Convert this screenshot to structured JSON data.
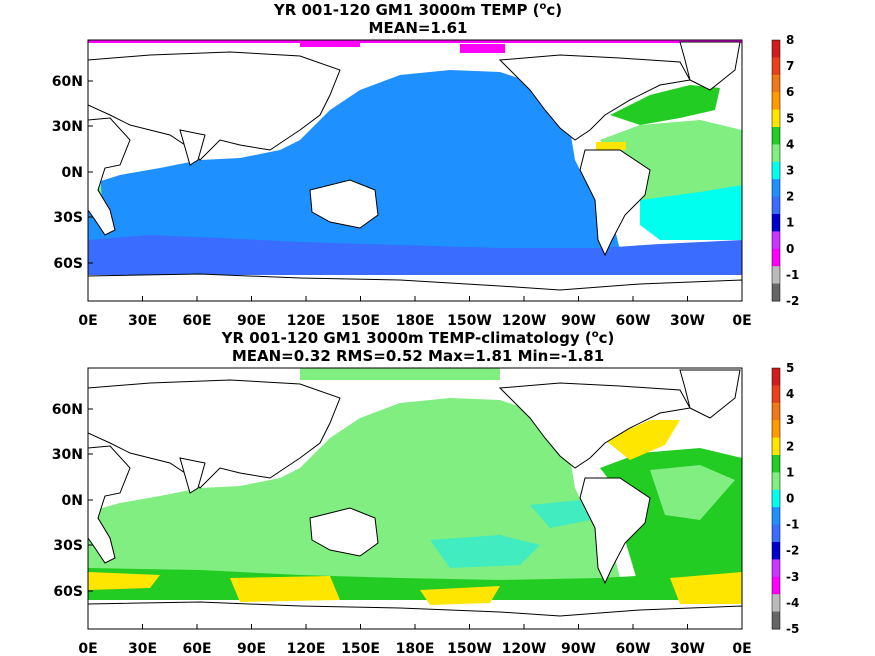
{
  "panels": [
    {
      "title_prefix": "YR 001-120 GM1 3000m TEMP (",
      "title_sup": "o",
      "title_suffix": "c)",
      "stats": "MEAN=1.61",
      "x_ticks": [
        "0E",
        "30E",
        "60E",
        "90E",
        "120E",
        "150E",
        "180E",
        "150W",
        "120W",
        "90W",
        "60W",
        "30W",
        "0E"
      ],
      "y_ticks": [
        "60N",
        "30N",
        "0N",
        "30S",
        "60S"
      ],
      "colorbar": {
        "labels": [
          "8",
          "7",
          "6",
          "5",
          "4",
          "3",
          "2",
          "1",
          "0",
          "-1",
          "-2"
        ],
        "colors": [
          "#d01c1c",
          "#e8401a",
          "#f07818",
          "#ff9a00",
          "#ffe600",
          "#22cc22",
          "#80ee80",
          "#00ffee",
          "#1e90ff",
          "#3a6cff",
          "#0000cc",
          "#cc33ff",
          "#ff00ff",
          "#bbbbbb",
          "#666666"
        ]
      },
      "fill_colors": {
        "pacific": "#1e90ff",
        "southern": "#3a6cff",
        "atlantic_north": "#22cc22",
        "atlantic_mid": "#80ee80",
        "atlantic_south": "#00ffee",
        "arctic": "#ff00ff",
        "carib": "#ffe600"
      }
    },
    {
      "title_prefix": "YR 001-120 GM1 3000m TEMP-climatology (",
      "title_sup": "o",
      "title_suffix": "c)",
      "stats": "MEAN=0.32   RMS=0.52   Max=1.81   Min=-1.81",
      "x_ticks": [
        "0E",
        "30E",
        "60E",
        "90E",
        "120E",
        "150E",
        "180E",
        "150W",
        "120W",
        "90W",
        "60W",
        "30W",
        "0E"
      ],
      "y_ticks": [
        "60N",
        "30N",
        "0N",
        "30S",
        "60S"
      ],
      "colorbar": {
        "labels": [
          "5",
          "4",
          "3",
          "2",
          "1",
          "0",
          "-1",
          "-2",
          "-3",
          "-4",
          "-5"
        ],
        "colors": [
          "#d01c1c",
          "#e8401a",
          "#f07818",
          "#ff9a00",
          "#ffe600",
          "#22cc22",
          "#80ee80",
          "#00ffee",
          "#1e90ff",
          "#3a6cff",
          "#0000cc",
          "#cc33ff",
          "#ff00ff",
          "#bbbbbb",
          "#666666"
        ]
      },
      "fill_colors": {
        "ocean": "#80ee80",
        "southern": "#22cc22",
        "yellow": "#ffe600",
        "pacific_cyan": "#40ecc0",
        "atlantic_north": "#22cc22"
      }
    }
  ]
}
